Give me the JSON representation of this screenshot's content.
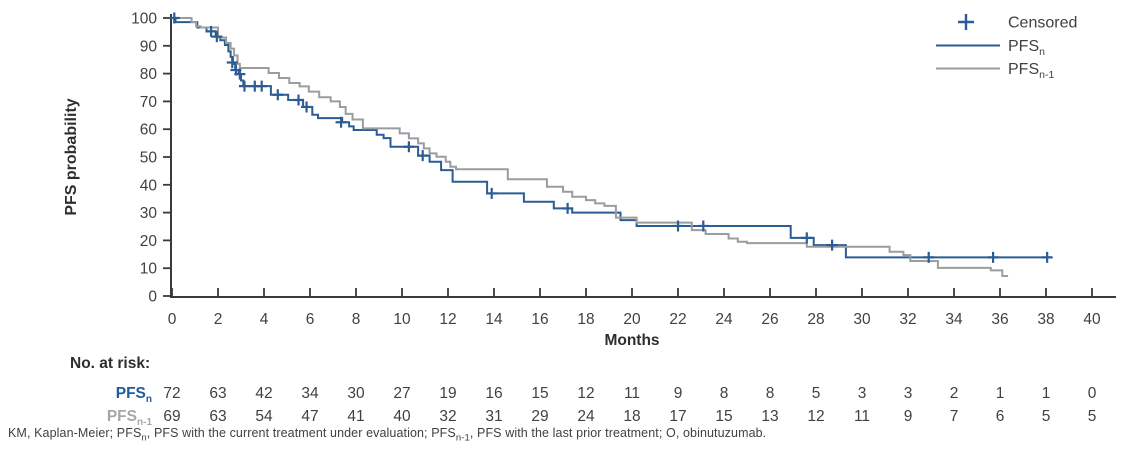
{
  "chart_data": {
    "type": "line",
    "subtype": "kaplan-meier-step",
    "xlabel": "Months",
    "ylabel": "PFS probability",
    "xlim": [
      0,
      40
    ],
    "ylim": [
      0,
      100
    ],
    "xticks": [
      0,
      2,
      4,
      6,
      8,
      10,
      12,
      14,
      16,
      18,
      20,
      22,
      24,
      26,
      28,
      30,
      32,
      34,
      36,
      38,
      40
    ],
    "yticks": [
      0,
      10,
      20,
      30,
      40,
      50,
      60,
      70,
      80,
      90,
      100
    ],
    "grid": "off",
    "legend_position": "top-right",
    "colors": {
      "pfs_n": "#2c5c94",
      "pfs_n_minus_1": "#9b9c9e",
      "axis": "#3a3a3a",
      "tick_label": "#414042",
      "risk_label_n": "#1f5b9e",
      "risk_label_n1": "#a6a7a9"
    },
    "legend": [
      {
        "type": "plus",
        "color": "#2c5c94",
        "label_base": "Censored",
        "label_sub": ""
      },
      {
        "type": "line",
        "color": "#2c5c94",
        "label_base": "PFS",
        "label_sub": "n"
      },
      {
        "type": "line",
        "color": "#9b9c9e",
        "label_base": "PFS",
        "label_sub": "n-1"
      }
    ],
    "series": [
      {
        "name": "PFS_n",
        "color": "#2c5c94",
        "steps": [
          [
            0,
            100
          ],
          [
            0.15,
            98.5
          ],
          [
            1.1,
            96.6
          ],
          [
            1.5,
            95.2
          ],
          [
            1.9,
            93.3
          ],
          [
            2.1,
            92
          ],
          [
            2.3,
            90.3
          ],
          [
            2.45,
            88
          ],
          [
            2.55,
            86
          ],
          [
            2.65,
            83.5
          ],
          [
            2.75,
            81.3
          ],
          [
            2.9,
            79.8
          ],
          [
            3.0,
            77.5
          ],
          [
            3.1,
            75.5
          ],
          [
            4.3,
            72.4
          ],
          [
            5.05,
            70.5
          ],
          [
            5.7,
            68
          ],
          [
            6.1,
            65.2
          ],
          [
            6.35,
            64
          ],
          [
            7.4,
            62.5
          ],
          [
            7.7,
            61
          ],
          [
            7.9,
            59.7
          ],
          [
            8.9,
            58
          ],
          [
            9.2,
            56.8
          ],
          [
            9.5,
            53.7
          ],
          [
            10.7,
            50.5
          ],
          [
            11.2,
            48.3
          ],
          [
            11.7,
            45.3
          ],
          [
            12.2,
            41.1
          ],
          [
            13.7,
            36.9
          ],
          [
            15.3,
            33.9
          ],
          [
            16.6,
            31.5
          ],
          [
            17.4,
            30
          ],
          [
            19.5,
            27.3
          ],
          [
            20.2,
            25.2
          ],
          [
            26.9,
            20.9
          ],
          [
            27.9,
            18.3
          ],
          [
            29.3,
            13.9
          ],
          [
            38.2,
            13.9
          ]
        ],
        "censors": [
          [
            0.1,
            100
          ],
          [
            1.7,
            95.2
          ],
          [
            1.95,
            93.3
          ],
          [
            2.62,
            84
          ],
          [
            2.78,
            81.3
          ],
          [
            2.95,
            79.8
          ],
          [
            3.15,
            75.5
          ],
          [
            3.6,
            75.5
          ],
          [
            3.9,
            75.5
          ],
          [
            4.6,
            72.4
          ],
          [
            5.5,
            70.5
          ],
          [
            5.85,
            68
          ],
          [
            7.35,
            62.5
          ],
          [
            10.3,
            53.7
          ],
          [
            10.9,
            50.5
          ],
          [
            13.9,
            36.9
          ],
          [
            17.2,
            31.5
          ],
          [
            22.0,
            25.2
          ],
          [
            23.1,
            25.2
          ],
          [
            27.6,
            20.9
          ],
          [
            28.7,
            18.3
          ],
          [
            32.9,
            13.9
          ],
          [
            35.7,
            13.9
          ],
          [
            38.05,
            13.9
          ]
        ]
      },
      {
        "name": "PFS_n-1",
        "color": "#9b9c9e",
        "steps": [
          [
            0,
            100
          ],
          [
            0.85,
            98.5
          ],
          [
            1.05,
            97
          ],
          [
            1.25,
            96.6
          ],
          [
            2.0,
            93
          ],
          [
            2.35,
            91
          ],
          [
            2.55,
            89
          ],
          [
            2.7,
            86.5
          ],
          [
            2.85,
            83.5
          ],
          [
            2.95,
            82
          ],
          [
            4.2,
            80.2
          ],
          [
            4.65,
            78.4
          ],
          [
            5.1,
            76.6
          ],
          [
            5.55,
            75.4
          ],
          [
            5.95,
            73.5
          ],
          [
            6.4,
            71.5
          ],
          [
            6.9,
            70
          ],
          [
            7.3,
            68
          ],
          [
            7.55,
            65.5
          ],
          [
            7.85,
            63.5
          ],
          [
            8.3,
            60.3
          ],
          [
            9.9,
            58.5
          ],
          [
            10.3,
            56.7
          ],
          [
            10.7,
            54.9
          ],
          [
            10.95,
            53.1
          ],
          [
            11.2,
            51.3
          ],
          [
            11.5,
            50.1
          ],
          [
            11.9,
            48.3
          ],
          [
            12.1,
            46.5
          ],
          [
            12.35,
            45.6
          ],
          [
            14.6,
            42
          ],
          [
            16.3,
            39.3
          ],
          [
            17.0,
            37.5
          ],
          [
            17.4,
            35.7
          ],
          [
            18.0,
            34.5
          ],
          [
            18.4,
            33.3
          ],
          [
            18.8,
            32.4
          ],
          [
            19.3,
            28.2
          ],
          [
            20.2,
            26.4
          ],
          [
            22.6,
            23.7
          ],
          [
            23.2,
            22.3
          ],
          [
            24.2,
            20.7
          ],
          [
            24.6,
            19.5
          ],
          [
            25.0,
            19.0
          ],
          [
            27.6,
            17.7
          ],
          [
            31.2,
            15.9
          ],
          [
            31.8,
            14.7
          ],
          [
            32.1,
            12.6
          ],
          [
            33.3,
            10.1
          ],
          [
            35.6,
            9.2
          ],
          [
            36.1,
            7.2
          ],
          [
            36.35,
            7.2
          ]
        ],
        "censors": []
      }
    ],
    "risk_table": {
      "title": "No. at risk:",
      "months": [
        0,
        2,
        4,
        6,
        8,
        10,
        12,
        14,
        16,
        18,
        20,
        22,
        24,
        26,
        28,
        30,
        32,
        34,
        36,
        38,
        40
      ],
      "rows": [
        {
          "label_base": "PFS",
          "label_sub": "n",
          "label_color": "#1f5b9e",
          "values": [
            72,
            63,
            42,
            34,
            30,
            27,
            19,
            16,
            15,
            12,
            11,
            9,
            8,
            8,
            5,
            3,
            3,
            2,
            1,
            1,
            0
          ]
        },
        {
          "label_base": "PFS",
          "label_sub": "n-1",
          "label_color": "#a6a7a9",
          "values": [
            69,
            63,
            54,
            47,
            41,
            40,
            32,
            31,
            29,
            24,
            18,
            17,
            15,
            13,
            12,
            11,
            9,
            7,
            6,
            5,
            5
          ]
        }
      ]
    },
    "footnote_parts": [
      {
        "t": "KM, Kaplan-Meier; PFS"
      },
      {
        "s": "n"
      },
      {
        "t": ", PFS with the current treatment under evaluation; PFS"
      },
      {
        "s": "n-1"
      },
      {
        "t": ", PFS with the last prior treatment; O, obinutuzumab."
      }
    ]
  }
}
